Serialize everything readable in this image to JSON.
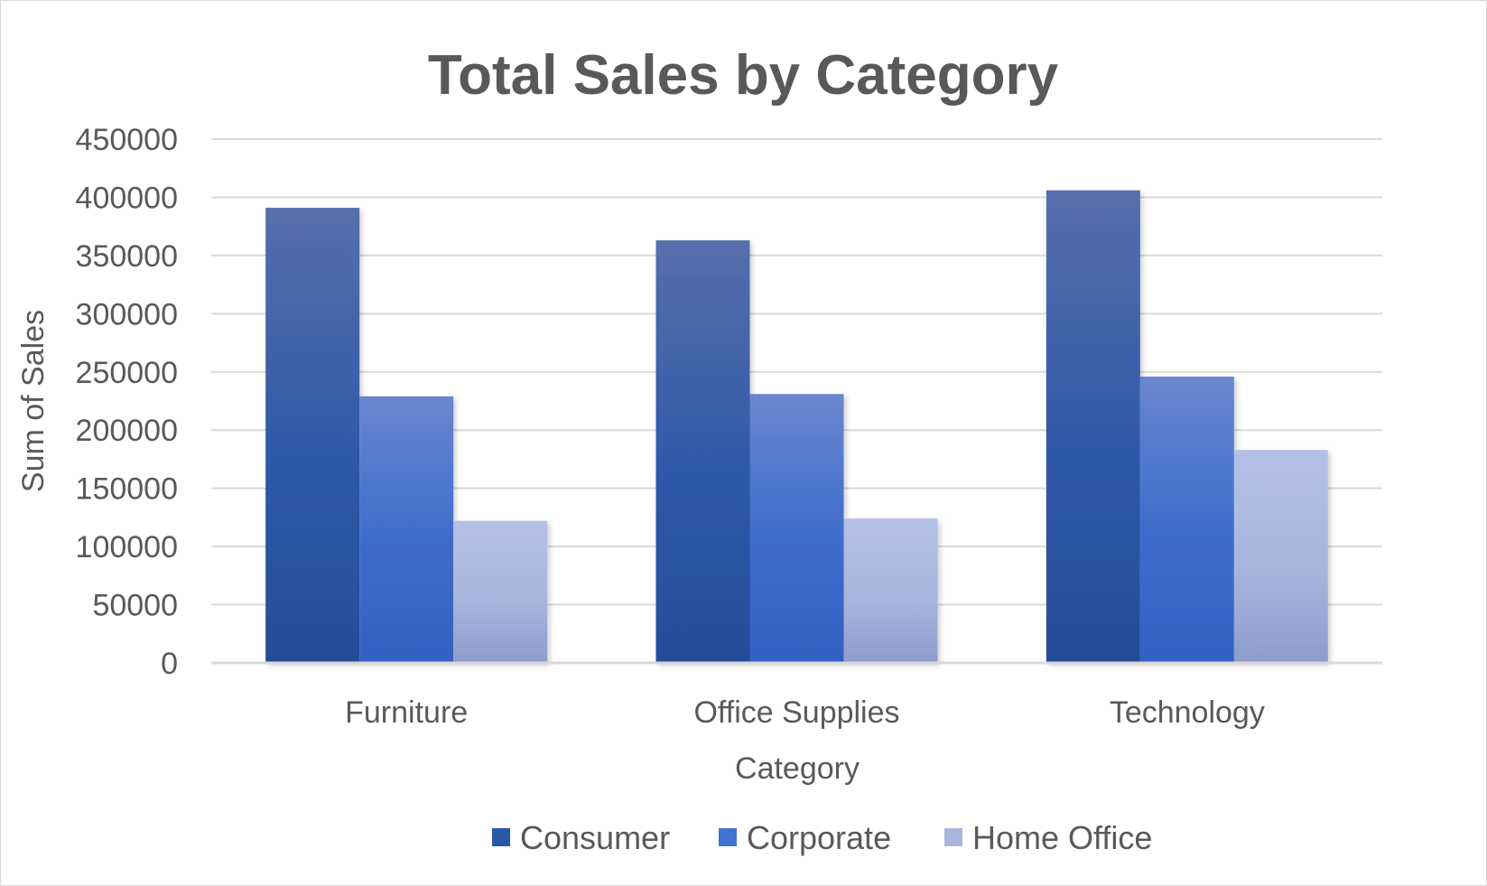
{
  "chart_data": {
    "type": "bar",
    "title": "Total Sales by Category",
    "xlabel": "Category",
    "ylabel": "Sum of Sales",
    "categories": [
      "Furniture",
      "Office Supplies",
      "Technology"
    ],
    "series": [
      {
        "name": "Consumer",
        "values": [
          391000,
          363000,
          406000
        ],
        "color": "#2b57a7"
      },
      {
        "name": "Corporate",
        "values": [
          229000,
          231000,
          246000
        ],
        "color": "#4272d1"
      },
      {
        "name": "Home Office",
        "values": [
          122000,
          124000,
          183000
        ],
        "color": "#a8b6de"
      }
    ],
    "ylim": [
      0,
      450000
    ],
    "yticks": [
      "450000",
      "400000",
      "350000",
      "300000",
      "250000",
      "200000",
      "150000",
      "100000",
      "50000",
      "0"
    ],
    "grid": true,
    "legend_position": "bottom"
  }
}
